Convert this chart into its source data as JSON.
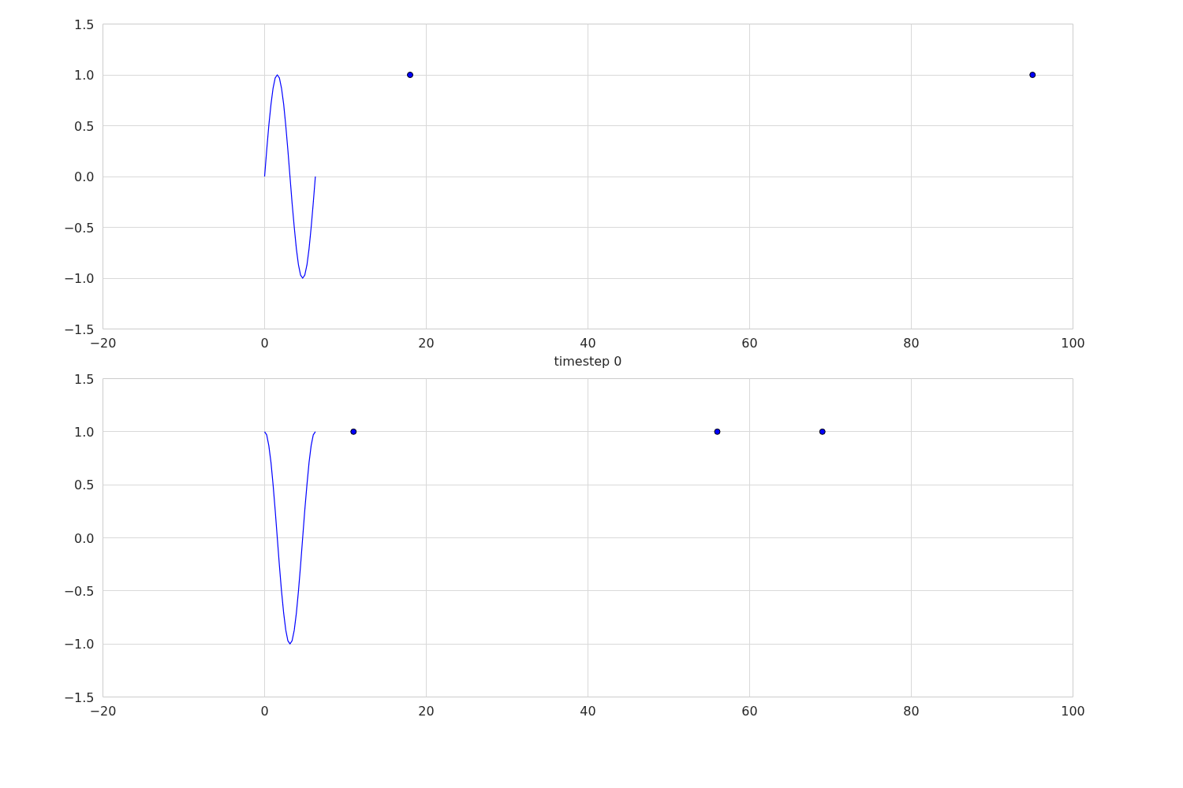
{
  "chart_data": [
    {
      "type": "line",
      "xlabel": "timestep 0",
      "xlim": [
        -20,
        100
      ],
      "ylim": [
        -1.5,
        1.5
      ],
      "xticks": [
        {
          "value": -20,
          "label": "−20"
        },
        0,
        20,
        40,
        60,
        80,
        100
      ],
      "yticks": [
        {
          "value": -1.5,
          "label": "−1.5"
        },
        {
          "value": -1.0,
          "label": "−1.0"
        },
        {
          "value": -0.5,
          "label": "−0.5"
        },
        {
          "value": 0.0,
          "label": "0.0"
        },
        {
          "value": 0.5,
          "label": "0.5"
        },
        {
          "value": 1.0,
          "label": "1.0"
        },
        {
          "value": 1.5,
          "label": "1.5"
        }
      ],
      "grid": true,
      "series": [
        {
          "color": "#0000ff",
          "marker": "none",
          "x": [
            0,
            0.26,
            0.52,
            0.79,
            1.05,
            1.31,
            1.57,
            1.83,
            2.09,
            2.36,
            2.62,
            2.88,
            3.14,
            3.4,
            3.67,
            3.93,
            4.19,
            4.45,
            4.71,
            4.97,
            5.24,
            5.5,
            5.76,
            6.02,
            6.28
          ],
          "values": [
            0,
            0.26,
            0.5,
            0.71,
            0.87,
            0.97,
            1,
            0.97,
            0.87,
            0.71,
            0.5,
            0.26,
            0,
            -0.26,
            -0.5,
            -0.71,
            -0.87,
            -0.97,
            -1,
            -0.97,
            -0.87,
            -0.71,
            -0.5,
            -0.26,
            0
          ]
        },
        {
          "type": "scatter",
          "color": "#0000ff",
          "marker": "circle",
          "x": [
            18,
            95
          ],
          "values": [
            1,
            1
          ]
        }
      ]
    },
    {
      "type": "line",
      "xlim": [
        -20,
        100
      ],
      "ylim": [
        -1.5,
        1.5
      ],
      "xticks": [
        {
          "value": -20,
          "label": "−20"
        },
        0,
        20,
        40,
        60,
        80,
        100
      ],
      "yticks": [
        {
          "value": -1.5,
          "label": "−1.5"
        },
        {
          "value": -1.0,
          "label": "−1.0"
        },
        {
          "value": -0.5,
          "label": "−0.5"
        },
        {
          "value": 0.0,
          "label": "0.0"
        },
        {
          "value": 0.5,
          "label": "0.5"
        },
        {
          "value": 1.0,
          "label": "1.0"
        },
        {
          "value": 1.5,
          "label": "1.5"
        }
      ],
      "grid": true,
      "series": [
        {
          "color": "#0000ff",
          "marker": "none",
          "x": [
            0,
            0.26,
            0.52,
            0.79,
            1.05,
            1.31,
            1.57,
            1.83,
            2.09,
            2.36,
            2.62,
            2.88,
            3.14,
            3.4,
            3.67,
            3.93,
            4.19,
            4.45,
            4.71,
            4.97,
            5.24,
            5.5,
            5.76,
            6.02,
            6.28
          ],
          "values": [
            1,
            0.97,
            0.87,
            0.71,
            0.5,
            0.26,
            0,
            -0.26,
            -0.5,
            -0.71,
            -0.87,
            -0.97,
            -1,
            -0.97,
            -0.87,
            -0.71,
            -0.5,
            -0.26,
            0,
            0.26,
            0.5,
            0.71,
            0.87,
            0.97,
            1
          ]
        },
        {
          "type": "scatter",
          "color": "#0000ff",
          "marker": "circle",
          "x": [
            11,
            56,
            69
          ],
          "values": [
            1,
            1,
            1
          ]
        }
      ]
    }
  ]
}
